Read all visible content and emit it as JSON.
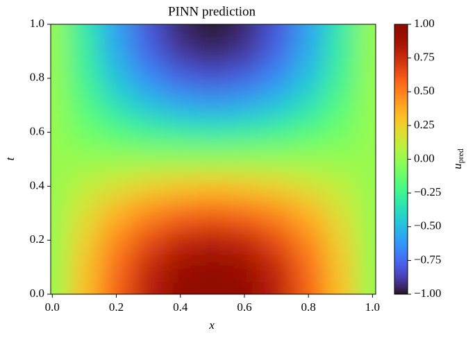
{
  "chart_data": {
    "type": "heatmap",
    "title": "PINN prediction",
    "x_label": "x",
    "y_label": "t",
    "colorbar_label": {
      "symbol": "u",
      "subscript": "pred"
    },
    "colormap": "turbo",
    "x": [
      0,
      0.1,
      0.2,
      0.3,
      0.4,
      0.5,
      0.6,
      0.7,
      0.8,
      0.9,
      1
    ],
    "y": [
      0,
      0.1,
      0.2,
      0.3,
      0.4,
      0.5,
      0.6,
      0.7,
      0.8,
      0.9,
      1
    ],
    "z": [
      [
        0,
        0.31,
        0.59,
        0.81,
        0.95,
        1,
        0.95,
        0.81,
        0.59,
        0.31,
        0
      ],
      [
        0,
        0.29,
        0.56,
        0.77,
        0.9,
        0.95,
        0.9,
        0.77,
        0.56,
        0.29,
        0
      ],
      [
        0,
        0.25,
        0.48,
        0.65,
        0.77,
        0.81,
        0.77,
        0.65,
        0.48,
        0.25,
        0
      ],
      [
        0,
        0.18,
        0.35,
        0.48,
        0.56,
        0.59,
        0.56,
        0.48,
        0.35,
        0.18,
        0
      ],
      [
        0,
        0.1,
        0.18,
        0.25,
        0.29,
        0.31,
        0.29,
        0.25,
        0.18,
        0.1,
        0
      ],
      [
        0,
        0,
        0,
        0,
        0,
        0,
        0,
        0,
        0,
        0,
        0
      ],
      [
        0,
        -0.1,
        -0.18,
        -0.25,
        -0.29,
        -0.31,
        -0.29,
        -0.25,
        -0.18,
        -0.1,
        0
      ],
      [
        0,
        -0.18,
        -0.35,
        -0.48,
        -0.56,
        -0.59,
        -0.56,
        -0.48,
        -0.35,
        -0.18,
        0
      ],
      [
        0,
        -0.25,
        -0.48,
        -0.65,
        -0.77,
        -0.81,
        -0.77,
        -0.65,
        -0.48,
        -0.25,
        0
      ],
      [
        0,
        -0.29,
        -0.56,
        -0.77,
        -0.9,
        -0.95,
        -0.9,
        -0.77,
        -0.56,
        -0.29,
        0
      ],
      [
        0,
        -0.31,
        -0.59,
        -0.81,
        -0.95,
        -1,
        -0.95,
        -0.81,
        -0.59,
        -0.31,
        0
      ]
    ],
    "xlim": [
      -0.005,
      1.01
    ],
    "ylim": [
      0,
      1
    ],
    "xticks": [
      {
        "value": 0,
        "label": "0.0"
      },
      {
        "value": 0.2,
        "label": "0.2"
      },
      {
        "value": 0.4,
        "label": "0.4"
      },
      {
        "value": 0.6,
        "label": "0.6"
      },
      {
        "value": 0.8,
        "label": "0.8"
      },
      {
        "value": 1,
        "label": "1.0"
      }
    ],
    "yticks": [
      {
        "value": 0,
        "label": "0.0"
      },
      {
        "value": 0.2,
        "label": "0.2"
      },
      {
        "value": 0.4,
        "label": "0.4"
      },
      {
        "value": 0.6,
        "label": "0.6"
      },
      {
        "value": 0.8,
        "label": "0.8"
      },
      {
        "value": 1,
        "label": "1.0"
      }
    ],
    "zlim": [
      -1,
      1
    ],
    "colorbar_ticks": [
      {
        "value": 1,
        "label": "1.00"
      },
      {
        "value": 0.75,
        "label": "0.75"
      },
      {
        "value": 0.5,
        "label": "0.50"
      },
      {
        "value": 0.25,
        "label": "0.25"
      },
      {
        "value": 0,
        "label": "0.00"
      },
      {
        "value": -0.25,
        "label": "−0.25"
      },
      {
        "value": -0.5,
        "label": "−0.50"
      },
      {
        "value": -0.75,
        "label": "−0.75"
      },
      {
        "value": -1,
        "label": "−1.00"
      }
    ]
  }
}
